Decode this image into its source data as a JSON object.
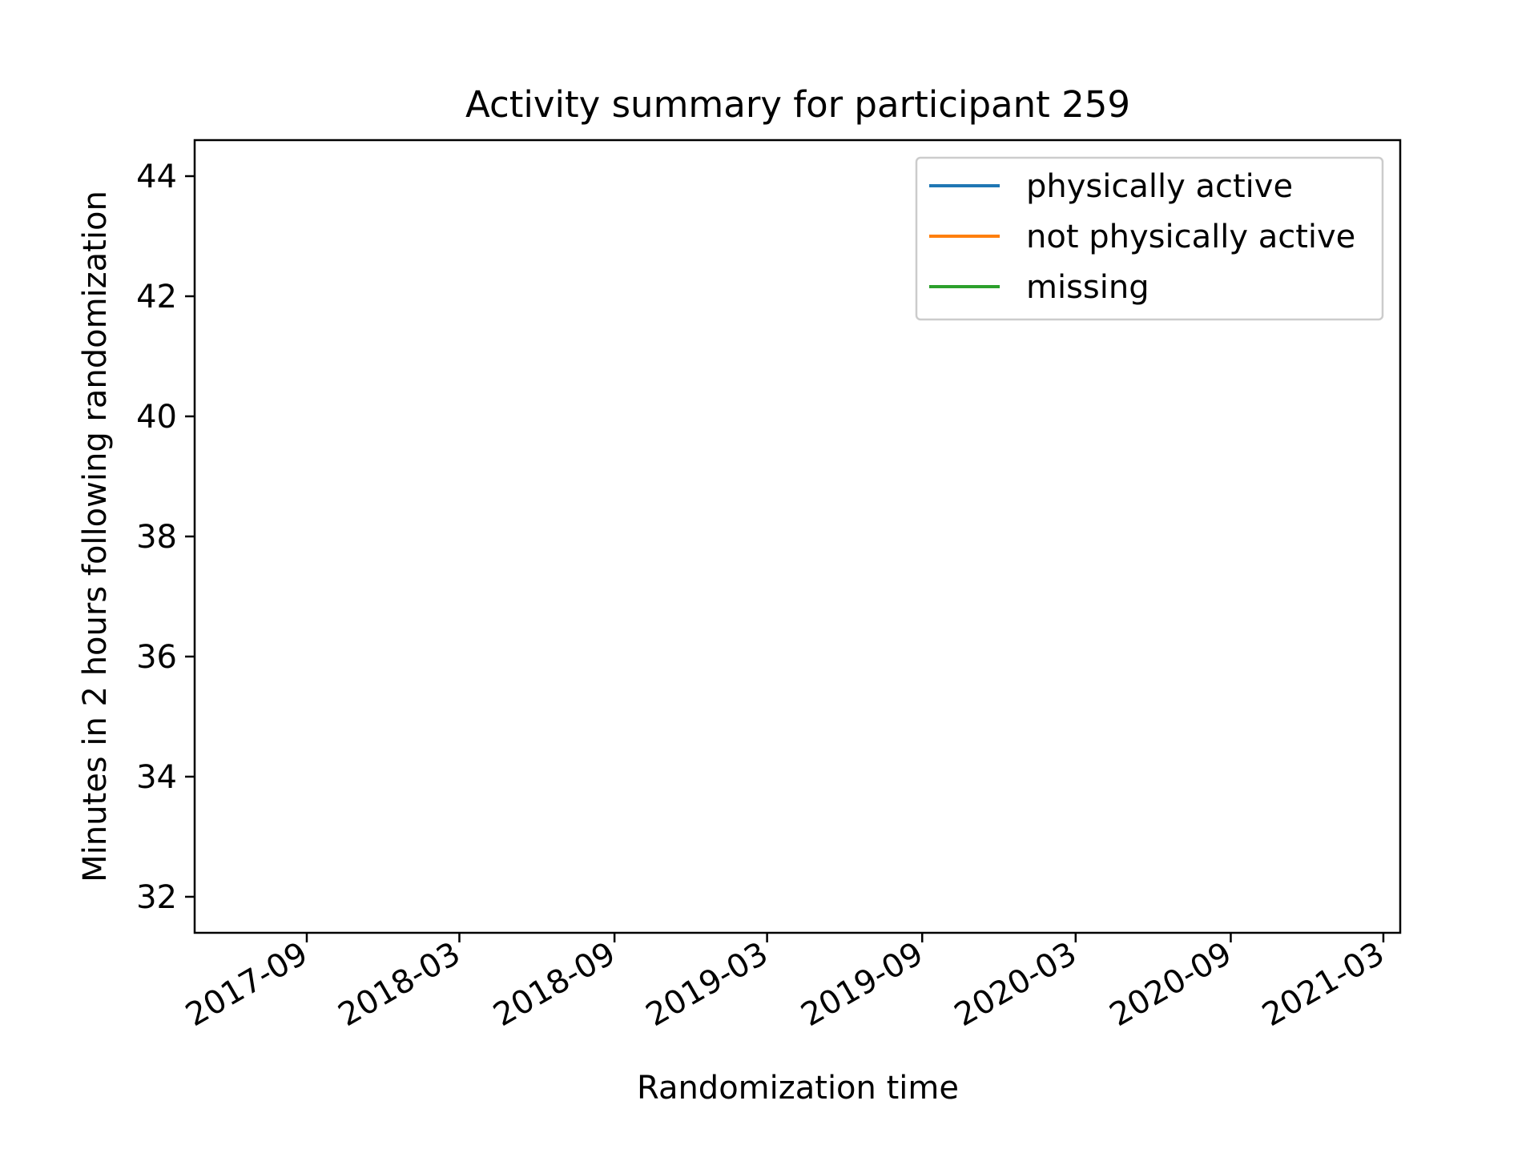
{
  "chart_data": {
    "type": "line",
    "title": "Activity summary for participant 259",
    "xlabel": "Randomization time",
    "ylabel": "Minutes in 2 hours following randomization",
    "x_scale": "date",
    "xlim": [
      "2017-04-21",
      "2021-03-21"
    ],
    "ylim": [
      31.4,
      44.6
    ],
    "x_ticks": [
      "2017-09",
      "2018-03",
      "2018-09",
      "2019-03",
      "2019-09",
      "2020-03",
      "2020-09",
      "2021-03"
    ],
    "y_ticks": [
      32,
      34,
      36,
      38,
      40,
      42,
      44
    ],
    "grid": false,
    "legend_position": "top-right",
    "series": [
      {
        "name": "physically active",
        "color": "#1f77b4",
        "points": []
      },
      {
        "name": "not physically active",
        "color": "#ff7f0e",
        "points": []
      },
      {
        "name": "missing",
        "color": "#2ca02c",
        "points": []
      }
    ]
  }
}
